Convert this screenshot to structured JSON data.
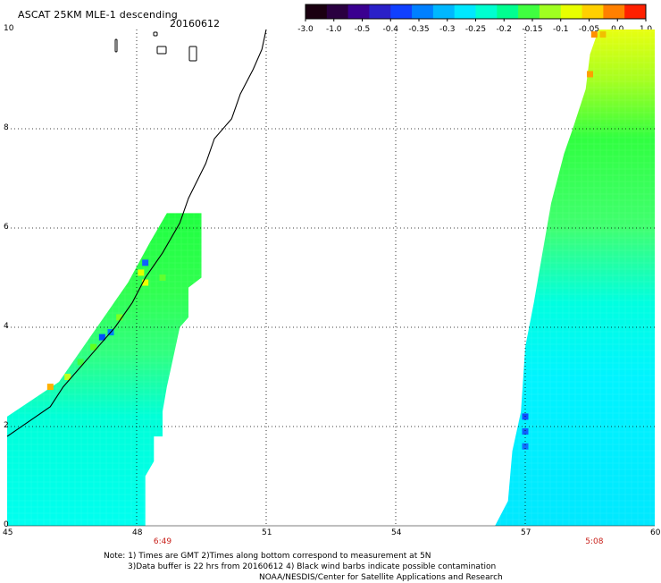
{
  "title": "ASCAT 25KM MLE-1 descending",
  "date": "20160612",
  "colorbar": {
    "labels": [
      "-3.0",
      "-1.0",
      "-0.5",
      "-0.4",
      "-0.35",
      "-0.3",
      "-0.25",
      "-0.2",
      "-0.15",
      "-0.1",
      "-0.05",
      "0.0",
      "1.0"
    ],
    "colors": [
      "#1a0010",
      "#2a0040",
      "#3a0090",
      "#2a20c8",
      "#1040ff",
      "#0080ff",
      "#00b8ff",
      "#00e8ff",
      "#00ffd0",
      "#00ff90",
      "#40ff40",
      "#a0ff20",
      "#e8ff00",
      "#ffd000",
      "#ff8000",
      "#ff2000"
    ]
  },
  "map": {
    "lon_ticks": [
      "45",
      "48",
      "51",
      "54",
      "57",
      "60"
    ],
    "lat_ticks": [
      "0",
      "2",
      "4",
      "6",
      "8",
      "10"
    ],
    "lon_range": [
      45,
      60
    ],
    "lat_range": [
      0,
      10
    ],
    "pass_times": [
      {
        "lon": 48.6,
        "label": "6:49"
      },
      {
        "lon": 58.6,
        "label": "5:08"
      }
    ],
    "swaths": [
      {
        "name": "west-swath",
        "polygon": [
          [
            45.0,
            0.0
          ],
          [
            45.0,
            2.2
          ],
          [
            46.2,
            2.9
          ],
          [
            47.0,
            3.9
          ],
          [
            47.8,
            4.9
          ],
          [
            48.3,
            5.7
          ],
          [
            48.7,
            6.3
          ],
          [
            49.5,
            6.3
          ],
          [
            49.5,
            5.0
          ],
          [
            49.2,
            4.8
          ],
          [
            49.2,
            4.2
          ],
          [
            49.0,
            4.0
          ],
          [
            48.8,
            3.2
          ],
          [
            48.7,
            2.8
          ],
          [
            48.6,
            2.3
          ],
          [
            48.6,
            1.8
          ],
          [
            48.4,
            1.8
          ],
          [
            48.4,
            1.3
          ],
          [
            48.2,
            1.0
          ],
          [
            48.2,
            0.0
          ]
        ]
      },
      {
        "name": "east-swath",
        "polygon": [
          [
            56.3,
            0.0
          ],
          [
            56.6,
            0.5
          ],
          [
            56.7,
            1.5
          ],
          [
            56.9,
            2.3
          ],
          [
            57.0,
            3.6
          ],
          [
            57.2,
            4.5
          ],
          [
            57.4,
            5.5
          ],
          [
            57.6,
            6.5
          ],
          [
            57.9,
            7.5
          ],
          [
            58.1,
            8.0
          ],
          [
            58.4,
            8.8
          ],
          [
            58.5,
            9.5
          ],
          [
            58.7,
            10.0
          ],
          [
            60.0,
            10.0
          ],
          [
            60.0,
            0.0
          ]
        ]
      }
    ],
    "anomalies": [
      {
        "lon": 46.0,
        "lat": 2.8,
        "color": "#ffb000"
      },
      {
        "lon": 46.4,
        "lat": 3.0,
        "color": "#c0ff20"
      },
      {
        "lon": 46.7,
        "lat": 3.3,
        "color": "#40ff40"
      },
      {
        "lon": 47.0,
        "lat": 3.6,
        "color": "#60ff20"
      },
      {
        "lon": 47.2,
        "lat": 3.8,
        "color": "#0050ff"
      },
      {
        "lon": 47.4,
        "lat": 3.9,
        "color": "#0080ff"
      },
      {
        "lon": 47.6,
        "lat": 4.2,
        "color": "#80ff20"
      },
      {
        "lon": 48.2,
        "lat": 5.3,
        "color": "#1060ff"
      },
      {
        "lon": 48.1,
        "lat": 5.1,
        "color": "#e0ff00"
      },
      {
        "lon": 48.2,
        "lat": 4.9,
        "color": "#f0ff00"
      },
      {
        "lon": 48.6,
        "lat": 5.0,
        "color": "#60ff30"
      },
      {
        "lon": 58.6,
        "lat": 9.9,
        "color": "#ff9000"
      },
      {
        "lon": 58.8,
        "lat": 9.9,
        "color": "#f0c000"
      },
      {
        "lon": 58.5,
        "lat": 9.1,
        "color": "#ffa000"
      },
      {
        "lon": 57.0,
        "lat": 2.2,
        "color": "#1050ff"
      },
      {
        "lon": 57.0,
        "lat": 1.9,
        "color": "#1060ff"
      },
      {
        "lon": 57.0,
        "lat": 1.6,
        "color": "#1070ff"
      }
    ],
    "coastline": [
      [
        45.0,
        1.8
      ],
      [
        45.5,
        2.1
      ],
      [
        46.0,
        2.4
      ],
      [
        46.3,
        2.8
      ],
      [
        46.7,
        3.2
      ],
      [
        47.1,
        3.6
      ],
      [
        47.5,
        4.0
      ],
      [
        47.9,
        4.5
      ],
      [
        48.2,
        5.0
      ],
      [
        48.6,
        5.5
      ],
      [
        49.0,
        6.1
      ],
      [
        49.2,
        6.6
      ],
      [
        49.6,
        7.3
      ],
      [
        49.8,
        7.8
      ],
      [
        50.2,
        8.2
      ],
      [
        50.4,
        8.7
      ],
      [
        50.7,
        9.2
      ],
      [
        50.9,
        9.6
      ],
      [
        51.0,
        10.0
      ]
    ]
  },
  "notes": [
    "Note: 1) Times are GMT 2)Times along bottom correspond to measurement at 5N",
    "3)Data buffer is 22 hrs from 20160612 4) Black wind barbs indicate possible contamination",
    "NOAA/NESDIS/Center for Satellite Applications and Research"
  ]
}
